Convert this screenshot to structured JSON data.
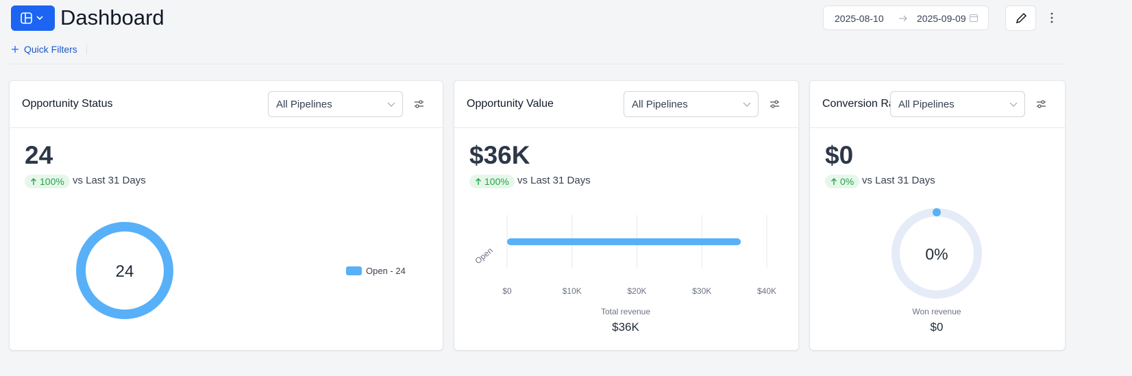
{
  "header": {
    "title": "Dashboard",
    "date_start": "2025-08-10",
    "date_end": "2025-09-09",
    "quick_filters": "Quick Filters"
  },
  "cards": [
    {
      "title": "Opportunity Status",
      "filter": "All Pipelines",
      "value": "24",
      "change": "100%",
      "comparison": "vs Last 31 Days",
      "chart": {
        "type": "donut",
        "center_label": "24",
        "series": [
          {
            "name": "Open",
            "value": 24,
            "label": "Open - 24",
            "color": "#58b0f8"
          }
        ]
      }
    },
    {
      "title": "Opportunity Value",
      "filter": "All Pipelines",
      "value": "$36K",
      "change": "100%",
      "comparison": "vs Last 31 Days",
      "chart": {
        "type": "bar",
        "orientation": "horizontal",
        "categories": [
          "Open"
        ],
        "values": [
          36000
        ],
        "color": "#58b0f8",
        "xlim": [
          0,
          40000
        ],
        "xticks": [
          {
            "value": 0,
            "label": "$0"
          },
          {
            "value": 10000,
            "label": "$10K"
          },
          {
            "value": 20000,
            "label": "$20K"
          },
          {
            "value": 30000,
            "label": "$30K"
          },
          {
            "value": 40000,
            "label": "$40K"
          }
        ],
        "grid": true,
        "footer_label": "Total revenue",
        "footer_value": "$36K"
      }
    },
    {
      "title": "Conversion Rate",
      "filter": "All Pipelines",
      "value": "$0",
      "change": "0%",
      "comparison": "vs Last 31 Days",
      "chart": {
        "type": "gauge",
        "value": 0,
        "value_label": "0%",
        "color": "#58b0f8",
        "track_color": "#e5ebf7",
        "footer_label": "Won revenue",
        "footer_value": "$0"
      }
    }
  ]
}
